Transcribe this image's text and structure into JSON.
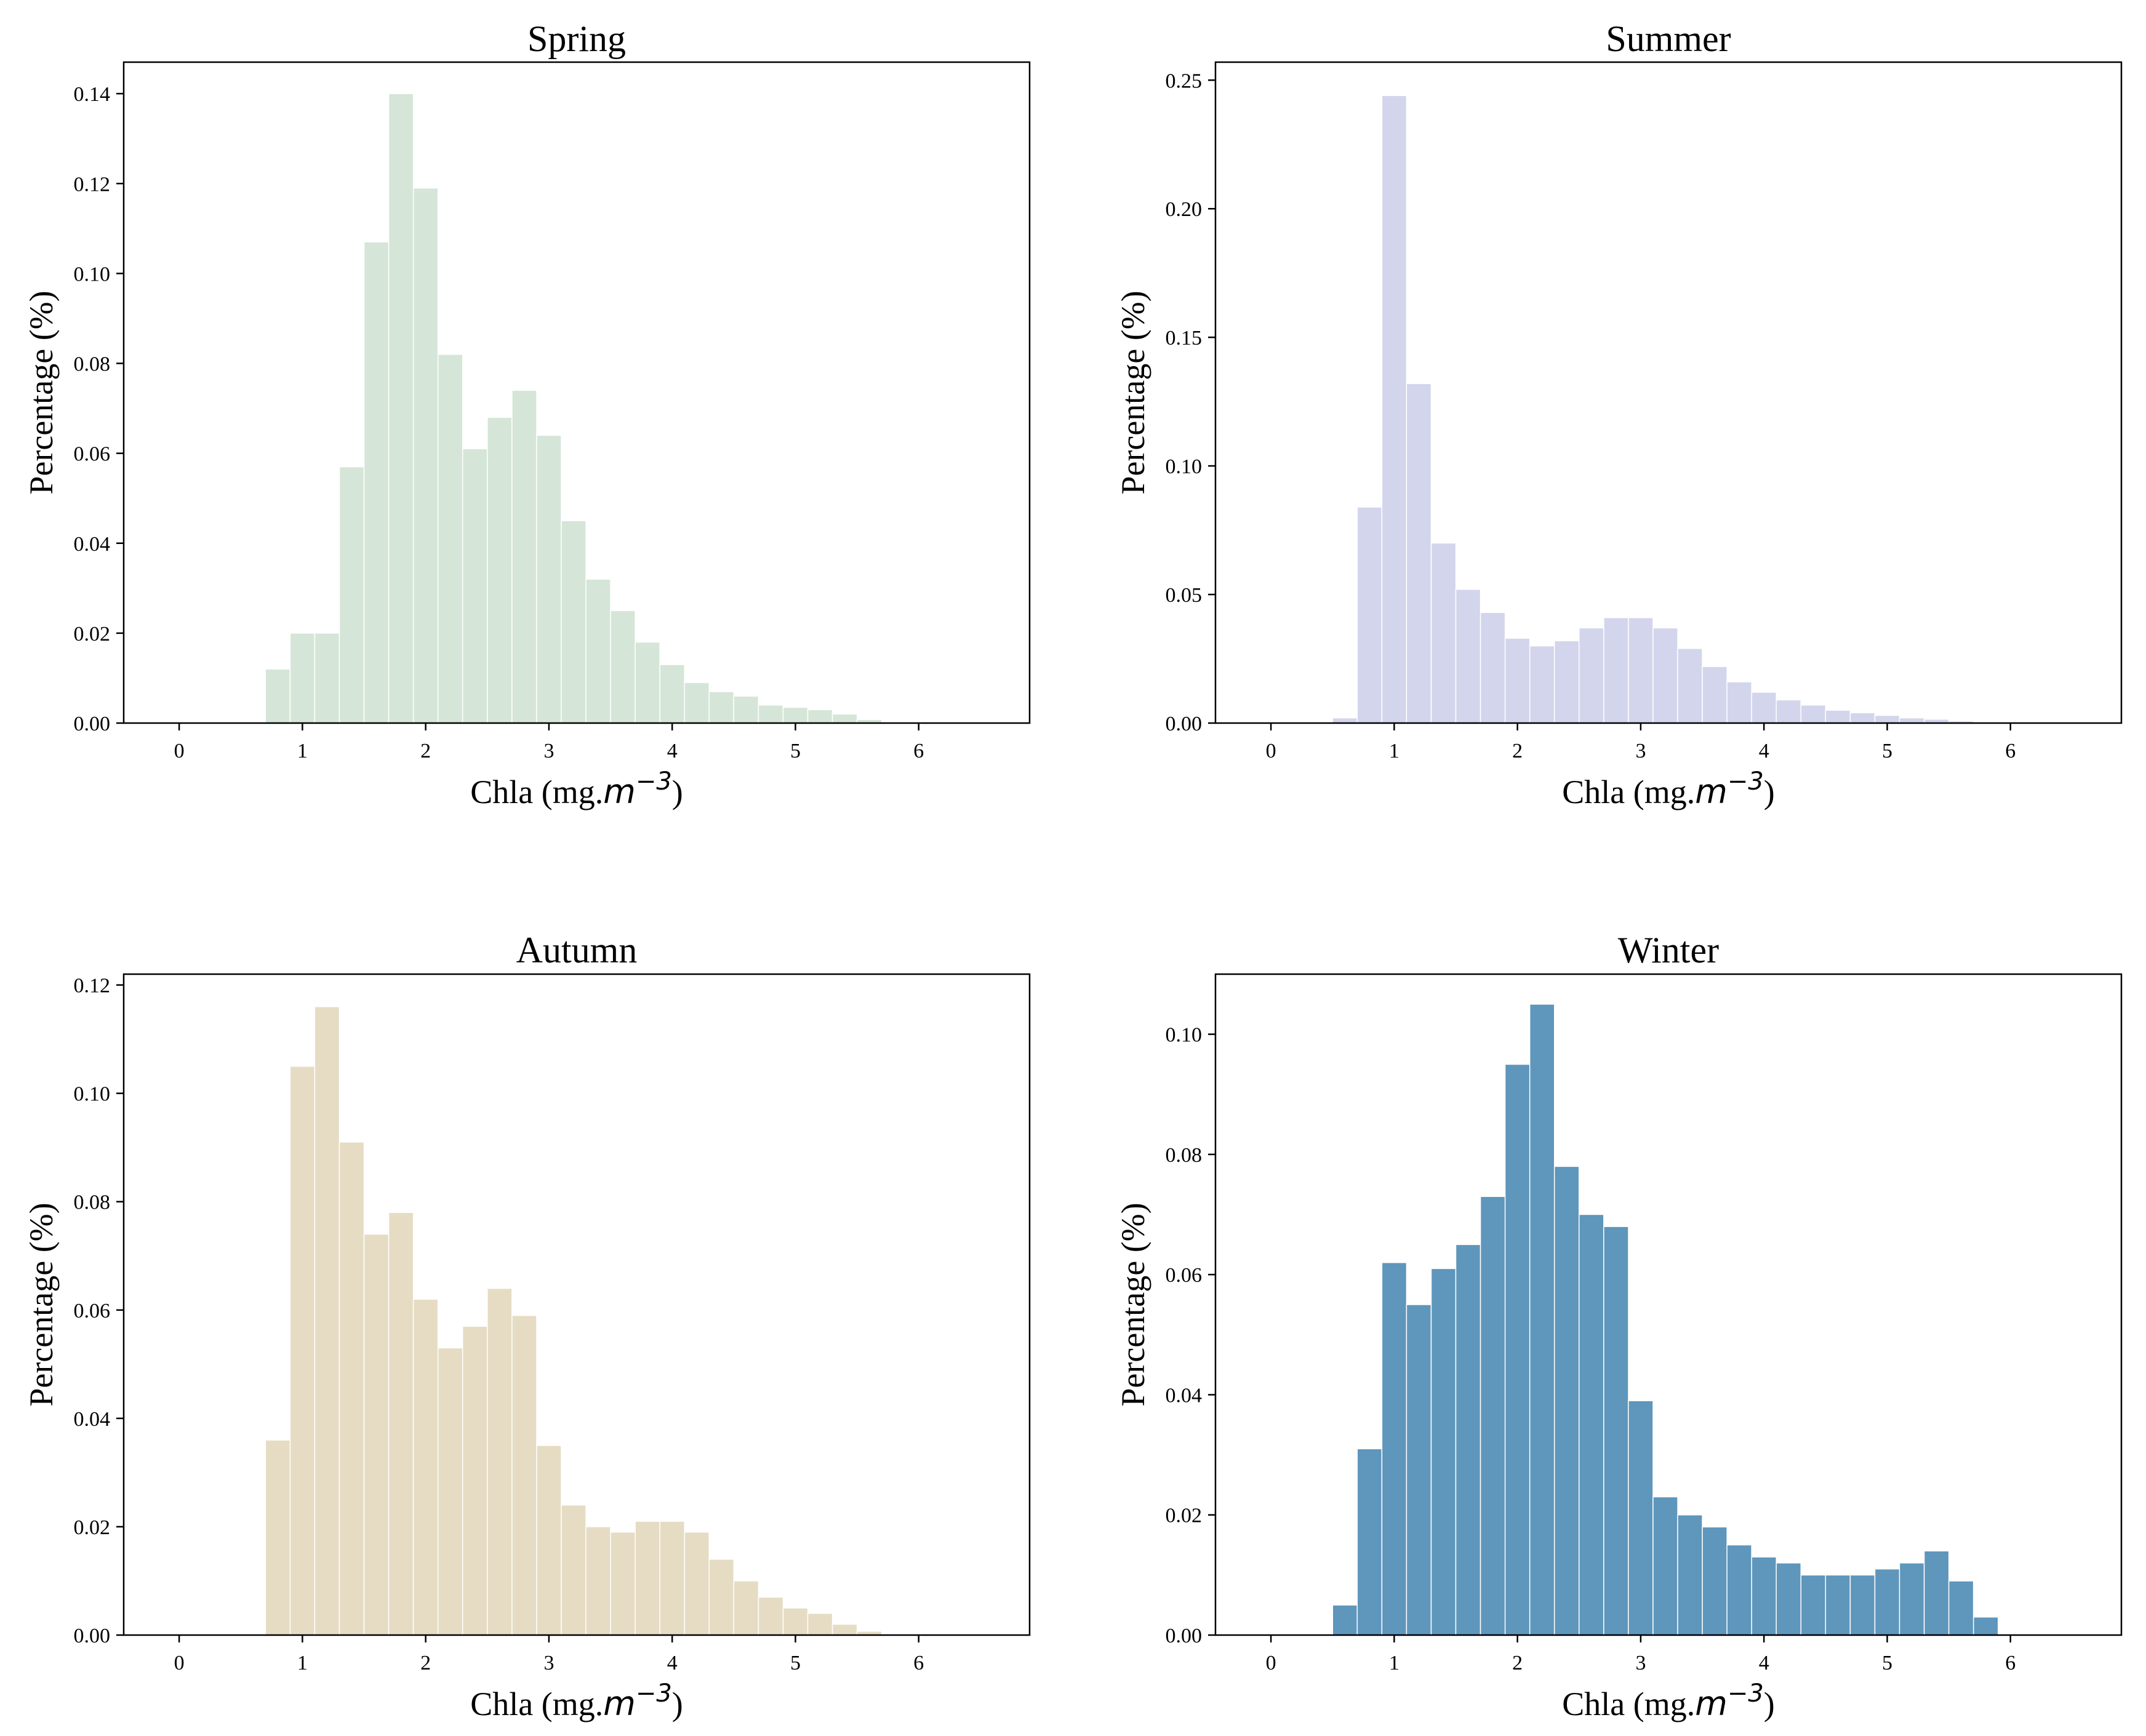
{
  "figure": {
    "panels": [
      {
        "title": "Spring",
        "xlabel_main": "Chla (mg.",
        "xlabel_var": "m",
        "xlabel_exp": "−3",
        "xlabel_close": ")",
        "ylabel": "Percentage (%)",
        "color": "#d5e6d8",
        "xticks": [
          0,
          1,
          2,
          3,
          4,
          5,
          6
        ],
        "yticks": [
          "0.00",
          "0.02",
          "0.04",
          "0.06",
          "0.08",
          "0.10",
          "0.12",
          "0.14"
        ]
      },
      {
        "title": "Summer",
        "xlabel_main": "Chla (mg.",
        "xlabel_var": "m",
        "xlabel_exp": "−3",
        "xlabel_close": ")",
        "ylabel": "Percentage (%)",
        "color": "#d3d5ec",
        "xticks": [
          0,
          1,
          2,
          3,
          4,
          5,
          6
        ],
        "yticks": [
          "0.00",
          "0.05",
          "0.10",
          "0.15",
          "0.20",
          "0.25"
        ]
      },
      {
        "title": "Autumn",
        "xlabel_main": "Chla (mg.",
        "xlabel_var": "m",
        "xlabel_exp": "−3",
        "xlabel_close": ")",
        "ylabel": "Percentage (%)",
        "color": "#e5dcc3",
        "xticks": [
          0,
          1,
          2,
          3,
          4,
          5,
          6
        ],
        "yticks": [
          "0.00",
          "0.02",
          "0.04",
          "0.06",
          "0.08",
          "0.10",
          "0.12"
        ]
      },
      {
        "title": "Winter",
        "xlabel_main": "Chla (mg.",
        "xlabel_var": "m",
        "xlabel_exp": "−3",
        "xlabel_close": ")",
        "ylabel": "Percentage (%)",
        "color": "#5f96bb",
        "xticks": [
          0,
          1,
          2,
          3,
          4,
          5,
          6
        ],
        "yticks": [
          "0.00",
          "0.02",
          "0.04",
          "0.06",
          "0.08",
          "0.10"
        ]
      }
    ]
  },
  "chart_data": [
    {
      "type": "bar",
      "title": "Spring",
      "xlabel": "Chla (mg.m^-3)",
      "ylabel": "Percentage (%)",
      "xlim": [
        -0.45,
        6.9
      ],
      "ylim": [
        0,
        0.147
      ],
      "bin_width": 0.2,
      "bin_edges_start": 0.7,
      "values": [
        0.012,
        0.02,
        0.02,
        0.057,
        0.107,
        0.14,
        0.119,
        0.082,
        0.061,
        0.068,
        0.074,
        0.064,
        0.045,
        0.032,
        0.025,
        0.018,
        0.013,
        0.009,
        0.007,
        0.006,
        0.004,
        0.0035,
        0.003,
        0.002,
        0.0008
      ]
    },
    {
      "type": "bar",
      "title": "Summer",
      "xlabel": "Chla (mg.m^-3)",
      "ylabel": "Percentage (%)",
      "xlim": [
        -0.45,
        6.9
      ],
      "ylim": [
        0,
        0.257
      ],
      "bin_width": 0.2,
      "bin_edges_start": 0.5,
      "values": [
        0.002,
        0.084,
        0.244,
        0.132,
        0.07,
        0.052,
        0.043,
        0.033,
        0.03,
        0.032,
        0.037,
        0.041,
        0.041,
        0.037,
        0.029,
        0.022,
        0.016,
        0.012,
        0.009,
        0.007,
        0.005,
        0.004,
        0.003,
        0.002,
        0.0015,
        0.0008
      ]
    },
    {
      "type": "bar",
      "title": "Autumn",
      "xlabel": "Chla (mg.m^-3)",
      "ylabel": "Percentage (%)",
      "xlim": [
        -0.45,
        6.9
      ],
      "ylim": [
        0,
        0.122
      ],
      "bin_width": 0.2,
      "bin_edges_start": 0.7,
      "values": [
        0.036,
        0.105,
        0.116,
        0.091,
        0.074,
        0.078,
        0.062,
        0.053,
        0.057,
        0.064,
        0.059,
        0.035,
        0.024,
        0.02,
        0.019,
        0.021,
        0.021,
        0.019,
        0.014,
        0.01,
        0.007,
        0.005,
        0.004,
        0.002,
        0.0007
      ]
    },
    {
      "type": "bar",
      "title": "Winter",
      "xlabel": "Chla (mg.m^-3)",
      "ylabel": "Percentage (%)",
      "xlim": [
        -0.45,
        6.9
      ],
      "ylim": [
        0,
        0.11
      ],
      "bin_width": 0.2,
      "bin_edges_start": 0.5,
      "values": [
        0.005,
        0.031,
        0.062,
        0.055,
        0.061,
        0.065,
        0.073,
        0.095,
        0.105,
        0.078,
        0.07,
        0.068,
        0.039,
        0.023,
        0.02,
        0.018,
        0.015,
        0.013,
        0.012,
        0.01,
        0.01,
        0.01,
        0.011,
        0.012,
        0.014,
        0.009,
        0.003
      ]
    }
  ]
}
